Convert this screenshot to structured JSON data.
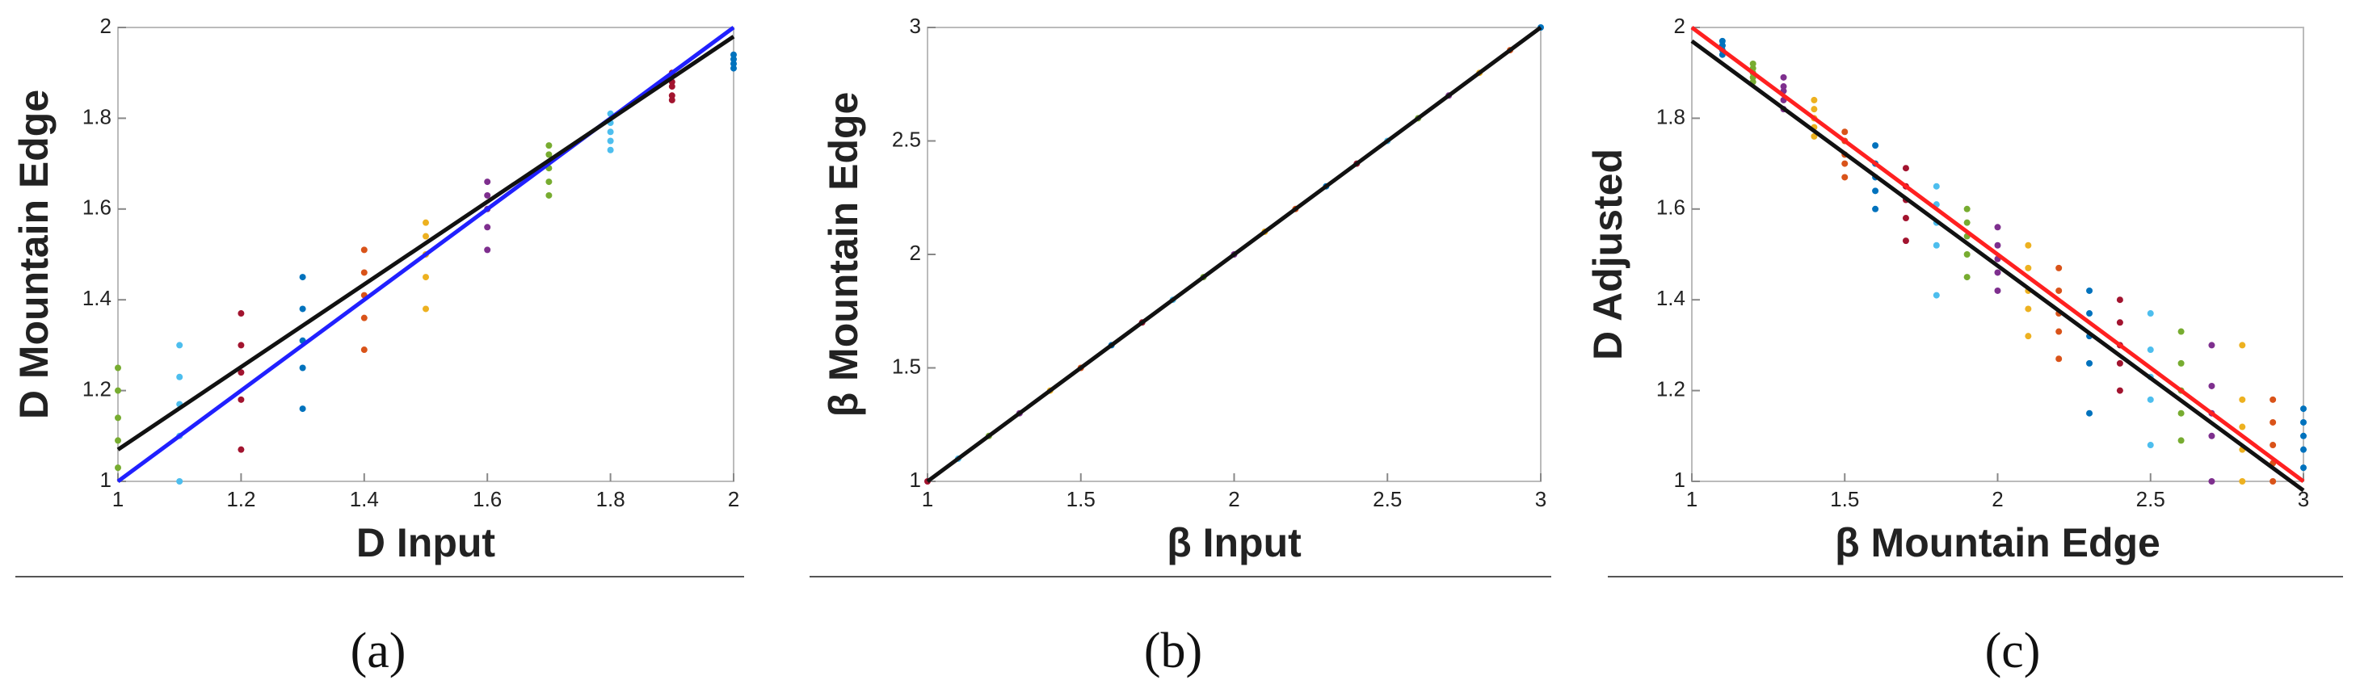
{
  "chart_data": [
    {
      "type": "scatter",
      "xlabel": "D Input",
      "ylabel": "D Mountain Edge",
      "caption": "(a)",
      "xlim": [
        1,
        2
      ],
      "ylim": [
        1,
        2
      ],
      "xticks": [
        1,
        1.2,
        1.4,
        1.6,
        1.8,
        2
      ],
      "yticks": [
        1,
        1.2,
        1.4,
        1.6,
        1.8,
        2
      ],
      "series": [
        {
          "color": "#77ac30",
          "x": [
            1,
            1,
            1,
            1,
            1
          ],
          "y": [
            1.03,
            1.09,
            1.14,
            1.2,
            1.25
          ]
        },
        {
          "color": "#4dbeee",
          "x": [
            1.1,
            1.1,
            1.1,
            1.1,
            1.1
          ],
          "y": [
            1.0,
            1.1,
            1.17,
            1.23,
            1.3
          ]
        },
        {
          "color": "#a2142f",
          "x": [
            1.2,
            1.2,
            1.2,
            1.2,
            1.2
          ],
          "y": [
            1.07,
            1.18,
            1.24,
            1.3,
            1.37
          ]
        },
        {
          "color": "#0072bd",
          "x": [
            1.3,
            1.3,
            1.3,
            1.3,
            1.3
          ],
          "y": [
            1.16,
            1.25,
            1.31,
            1.38,
            1.45
          ]
        },
        {
          "color": "#d95319",
          "x": [
            1.4,
            1.4,
            1.4,
            1.4,
            1.4
          ],
          "y": [
            1.29,
            1.36,
            1.41,
            1.46,
            1.51
          ]
        },
        {
          "color": "#edb120",
          "x": [
            1.5,
            1.5,
            1.5,
            1.5,
            1.5
          ],
          "y": [
            1.38,
            1.45,
            1.5,
            1.54,
            1.57
          ]
        },
        {
          "color": "#7e2f8e",
          "x": [
            1.6,
            1.6,
            1.6,
            1.6,
            1.6
          ],
          "y": [
            1.51,
            1.56,
            1.6,
            1.63,
            1.66
          ]
        },
        {
          "color": "#77ac30",
          "x": [
            1.7,
            1.7,
            1.7,
            1.7,
            1.7
          ],
          "y": [
            1.63,
            1.66,
            1.69,
            1.72,
            1.74
          ]
        },
        {
          "color": "#4dbeee",
          "x": [
            1.8,
            1.8,
            1.8,
            1.8,
            1.8
          ],
          "y": [
            1.73,
            1.75,
            1.77,
            1.79,
            1.81
          ]
        },
        {
          "color": "#a2142f",
          "x": [
            1.9,
            1.9,
            1.9,
            1.9,
            1.9
          ],
          "y": [
            1.84,
            1.85,
            1.87,
            1.88,
            1.9
          ]
        },
        {
          "color": "#0072bd",
          "x": [
            2,
            2,
            2,
            2
          ],
          "y": [
            1.91,
            1.92,
            1.93,
            1.94
          ]
        }
      ],
      "lines": [
        {
          "color": "#2020ff",
          "x": [
            1,
            2
          ],
          "y": [
            1.0,
            2.0
          ]
        },
        {
          "color": "#111111",
          "x": [
            1,
            2
          ],
          "y": [
            1.07,
            1.98
          ]
        }
      ]
    },
    {
      "type": "scatter",
      "xlabel": "β Input",
      "ylabel": "β Mountain Edge",
      "caption": "(b)",
      "xlim": [
        1,
        3
      ],
      "ylim": [
        1,
        3
      ],
      "xticks": [
        1,
        1.5,
        2,
        2.5,
        3
      ],
      "yticks": [
        1,
        1.5,
        2,
        2.5,
        3
      ],
      "series": [
        {
          "color": "#a2142f",
          "x": [
            1
          ],
          "y": [
            1
          ]
        },
        {
          "color": "#4dbeee",
          "x": [
            1.1
          ],
          "y": [
            1.1
          ]
        },
        {
          "color": "#77ac30",
          "x": [
            1.2
          ],
          "y": [
            1.2
          ]
        },
        {
          "color": "#7e2f8e",
          "x": [
            1.3
          ],
          "y": [
            1.3
          ]
        },
        {
          "color": "#edb120",
          "x": [
            1.4
          ],
          "y": [
            1.4
          ]
        },
        {
          "color": "#d95319",
          "x": [
            1.5
          ],
          "y": [
            1.5
          ]
        },
        {
          "color": "#0072bd",
          "x": [
            1.6
          ],
          "y": [
            1.6
          ]
        },
        {
          "color": "#a2142f",
          "x": [
            1.7
          ],
          "y": [
            1.7
          ]
        },
        {
          "color": "#4dbeee",
          "x": [
            1.8
          ],
          "y": [
            1.8
          ]
        },
        {
          "color": "#77ac30",
          "x": [
            1.9
          ],
          "y": [
            1.9
          ]
        },
        {
          "color": "#7e2f8e",
          "x": [
            2
          ],
          "y": [
            2
          ]
        },
        {
          "color": "#edb120",
          "x": [
            2.1
          ],
          "y": [
            2.1
          ]
        },
        {
          "color": "#d95319",
          "x": [
            2.2
          ],
          "y": [
            2.2
          ]
        },
        {
          "color": "#0072bd",
          "x": [
            2.3
          ],
          "y": [
            2.3
          ]
        },
        {
          "color": "#a2142f",
          "x": [
            2.4
          ],
          "y": [
            2.4
          ]
        },
        {
          "color": "#4dbeee",
          "x": [
            2.5
          ],
          "y": [
            2.5
          ]
        },
        {
          "color": "#77ac30",
          "x": [
            2.6
          ],
          "y": [
            2.6
          ]
        },
        {
          "color": "#7e2f8e",
          "x": [
            2.7
          ],
          "y": [
            2.7
          ]
        },
        {
          "color": "#edb120",
          "x": [
            2.8
          ],
          "y": [
            2.8
          ]
        },
        {
          "color": "#d95319",
          "x": [
            2.9
          ],
          "y": [
            2.9
          ]
        },
        {
          "color": "#0072bd",
          "x": [
            3
          ],
          "y": [
            3
          ]
        }
      ],
      "lines": [
        {
          "color": "#111111",
          "x": [
            1,
            3
          ],
          "y": [
            1,
            3
          ]
        }
      ]
    },
    {
      "type": "scatter",
      "xlabel": "β Mountain Edge",
      "ylabel": "D Adjusted",
      "caption": "(c)",
      "xlim": [
        1,
        3
      ],
      "ylim": [
        1,
        2
      ],
      "xticks": [
        1,
        1.5,
        2,
        2.5,
        3
      ],
      "yticks": [
        1,
        1.2,
        1.4,
        1.6,
        1.8,
        2
      ],
      "series": [
        {
          "color": "#0072bd",
          "x": [
            1.1,
            1.1,
            1.1,
            1.1,
            1.1
          ],
          "y": [
            1.94,
            1.95,
            1.96,
            1.96,
            1.97
          ]
        },
        {
          "color": "#77ac30",
          "x": [
            1.2,
            1.2,
            1.2,
            1.2,
            1.2
          ],
          "y": [
            1.88,
            1.89,
            1.9,
            1.91,
            1.92
          ]
        },
        {
          "color": "#7e2f8e",
          "x": [
            1.3,
            1.3,
            1.3,
            1.3,
            1.3
          ],
          "y": [
            1.82,
            1.84,
            1.86,
            1.87,
            1.89
          ]
        },
        {
          "color": "#edb120",
          "x": [
            1.4,
            1.4,
            1.4,
            1.4,
            1.4
          ],
          "y": [
            1.76,
            1.78,
            1.8,
            1.82,
            1.84
          ]
        },
        {
          "color": "#d95319",
          "x": [
            1.5,
            1.5,
            1.5,
            1.5,
            1.5
          ],
          "y": [
            1.67,
            1.7,
            1.72,
            1.75,
            1.77
          ]
        },
        {
          "color": "#0072bd",
          "x": [
            1.6,
            1.6,
            1.6,
            1.6,
            1.6
          ],
          "y": [
            1.6,
            1.64,
            1.67,
            1.7,
            1.74
          ]
        },
        {
          "color": "#a2142f",
          "x": [
            1.7,
            1.7,
            1.7,
            1.7,
            1.7
          ],
          "y": [
            1.53,
            1.58,
            1.62,
            1.65,
            1.69
          ]
        },
        {
          "color": "#4dbeee",
          "x": [
            1.8,
            1.8,
            1.8,
            1.8,
            1.8
          ],
          "y": [
            1.41,
            1.52,
            1.57,
            1.61,
            1.65
          ]
        },
        {
          "color": "#77ac30",
          "x": [
            1.9,
            1.9,
            1.9,
            1.9,
            1.9
          ],
          "y": [
            1.45,
            1.5,
            1.54,
            1.57,
            1.6
          ]
        },
        {
          "color": "#7e2f8e",
          "x": [
            2,
            2,
            2,
            2,
            2
          ],
          "y": [
            1.42,
            1.46,
            1.49,
            1.52,
            1.56
          ]
        },
        {
          "color": "#edb120",
          "x": [
            2.1,
            2.1,
            2.1,
            2.1,
            2.1
          ],
          "y": [
            1.32,
            1.38,
            1.42,
            1.47,
            1.52
          ]
        },
        {
          "color": "#d95319",
          "x": [
            2.2,
            2.2,
            2.2,
            2.2,
            2.2
          ],
          "y": [
            1.27,
            1.33,
            1.37,
            1.42,
            1.47
          ]
        },
        {
          "color": "#0072bd",
          "x": [
            2.3,
            2.3,
            2.3,
            2.3,
            2.3
          ],
          "y": [
            1.15,
            1.26,
            1.32,
            1.37,
            1.42
          ]
        },
        {
          "color": "#a2142f",
          "x": [
            2.4,
            2.4,
            2.4,
            2.4,
            2.4
          ],
          "y": [
            1.2,
            1.26,
            1.3,
            1.35,
            1.4
          ]
        },
        {
          "color": "#4dbeee",
          "x": [
            2.5,
            2.5,
            2.5,
            2.5,
            2.5
          ],
          "y": [
            1.08,
            1.18,
            1.23,
            1.29,
            1.37
          ]
        },
        {
          "color": "#77ac30",
          "x": [
            2.6,
            2.6,
            2.6,
            2.6,
            2.6
          ],
          "y": [
            1.09,
            1.15,
            1.2,
            1.26,
            1.33
          ]
        },
        {
          "color": "#7e2f8e",
          "x": [
            2.7,
            2.7,
            2.7,
            2.7,
            2.7
          ],
          "y": [
            1.0,
            1.1,
            1.15,
            1.21,
            1.3
          ]
        },
        {
          "color": "#edb120",
          "x": [
            2.8,
            2.8,
            2.8,
            2.8,
            2.8
          ],
          "y": [
            1.0,
            1.07,
            1.12,
            1.18,
            1.3
          ]
        },
        {
          "color": "#d95319",
          "x": [
            2.9,
            2.9,
            2.9,
            2.9,
            2.9
          ],
          "y": [
            1.0,
            1.04,
            1.08,
            1.13,
            1.18
          ]
        },
        {
          "color": "#0072bd",
          "x": [
            3,
            3,
            3,
            3,
            3
          ],
          "y": [
            1.03,
            1.07,
            1.1,
            1.13,
            1.16
          ]
        }
      ],
      "lines": [
        {
          "color": "#ff2020",
          "x": [
            1,
            3
          ],
          "y": [
            2.0,
            1.0
          ]
        },
        {
          "color": "#111111",
          "x": [
            1,
            3
          ],
          "y": [
            1.97,
            0.98
          ]
        }
      ]
    }
  ]
}
